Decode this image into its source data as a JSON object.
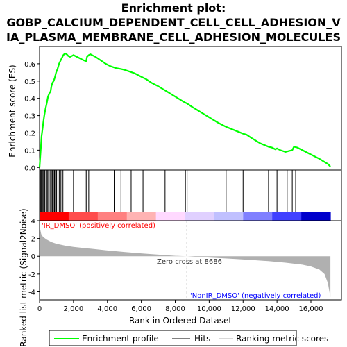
{
  "chart_data": {
    "type": "line",
    "title_lines": [
      "Enrichment plot:",
      "GOBP_CALCIUM_DEPENDENT_CELL_CELL_ADHESION_V",
      "IA_PLASMA_MEMBRANE_CELL_ADHESION_MOLECULES"
    ],
    "xlabel": "Rank in Ordered Dataset",
    "es_ylabel": "Enrichment score (ES)",
    "metric_ylabel": "Ranked list metric (Signal2Noise)",
    "xlim": [
      0,
      17800
    ],
    "x_ticks": [
      0,
      2000,
      4000,
      6000,
      8000,
      10000,
      12000,
      14000,
      16000
    ],
    "x_tick_labels": [
      "0",
      "2,000",
      "4,000",
      "6,000",
      "8,000",
      "10,000",
      "12,000",
      "14,000",
      "16,000"
    ],
    "es_ylim": [
      -0.015,
      0.7
    ],
    "es_ticks": [
      0.0,
      0.1,
      0.2,
      0.3,
      0.4,
      0.5,
      0.6
    ],
    "es_tick_labels": [
      "0.0",
      "0.1",
      "0.2",
      "0.3",
      "0.4",
      "0.5",
      "0.6"
    ],
    "metric_ylim": [
      -4.9,
      4.0
    ],
    "metric_ticks": [
      -4,
      -2,
      0,
      2,
      4
    ],
    "metric_tick_labels": [
      "-4",
      "-2",
      "0",
      "2",
      "4"
    ],
    "grid": false,
    "legend_position": "bottom",
    "series": [
      {
        "name": "Enrichment profile",
        "color": "#00ff00",
        "x": [
          0,
          40,
          80,
          120,
          170,
          220,
          280,
          350,
          420,
          500,
          580,
          650,
          700,
          760,
          830,
          900,
          980,
          1060,
          1150,
          1250,
          1300,
          1400,
          1500,
          1600,
          1700,
          1800,
          1900,
          2000,
          2200,
          2400,
          2600,
          2750,
          2800,
          2900,
          3000,
          3300,
          3600,
          3900,
          4200,
          4500,
          4800,
          5000,
          5300,
          5600,
          6000,
          6300,
          6600,
          7000,
          7500,
          8000,
          8500,
          8700,
          9000,
          9500,
          10000,
          10500,
          11000,
          11500,
          12000,
          12200,
          12500,
          13000,
          13500,
          13700,
          13900,
          14000,
          14200,
          14500,
          14700,
          14900,
          15000,
          15200,
          15500,
          16000,
          16500,
          17000,
          17150
        ],
        "y": [
          0.0,
          0.06,
          0.12,
          0.18,
          0.22,
          0.26,
          0.3,
          0.34,
          0.37,
          0.41,
          0.43,
          0.44,
          0.47,
          0.49,
          0.5,
          0.52,
          0.55,
          0.57,
          0.6,
          0.62,
          0.63,
          0.65,
          0.66,
          0.655,
          0.645,
          0.64,
          0.645,
          0.65,
          0.64,
          0.63,
          0.62,
          0.615,
          0.64,
          0.65,
          0.655,
          0.64,
          0.62,
          0.6,
          0.585,
          0.575,
          0.57,
          0.565,
          0.555,
          0.545,
          0.525,
          0.51,
          0.49,
          0.47,
          0.44,
          0.41,
          0.38,
          0.37,
          0.35,
          0.32,
          0.29,
          0.26,
          0.235,
          0.215,
          0.195,
          0.19,
          0.17,
          0.14,
          0.12,
          0.115,
          0.105,
          0.11,
          0.1,
          0.09,
          0.095,
          0.1,
          0.12,
          0.115,
          0.1,
          0.075,
          0.05,
          0.02,
          0.005
        ]
      }
    ],
    "hits": [
      30,
      70,
      110,
      160,
      210,
      260,
      310,
      380,
      440,
      490,
      550,
      620,
      700,
      760,
      820,
      880,
      940,
      1000,
      1080,
      1160,
      1260,
      1380,
      2000,
      2750,
      2800,
      2900,
      4400,
      4800,
      5400,
      6100,
      7400,
      8600,
      8700,
      11000,
      12000,
      13500,
      14000,
      14600,
      14900,
      15100
    ],
    "metric_profile": {
      "x": [
        0,
        100,
        200,
        400,
        700,
        1000,
        1500,
        2000,
        3000,
        4000,
        5000,
        6000,
        7000,
        8000,
        8686,
        9500,
        10500,
        11500,
        12500,
        13500,
        14500,
        15500,
        16000,
        16500,
        16800,
        17000,
        17150
      ],
      "y": [
        3.4,
        2.5,
        2.2,
        1.9,
        1.6,
        1.4,
        1.2,
        1.05,
        0.85,
        0.65,
        0.48,
        0.32,
        0.18,
        0.05,
        0.0,
        -0.1,
        -0.2,
        -0.3,
        -0.42,
        -0.55,
        -0.72,
        -0.95,
        -1.15,
        -1.5,
        -2.0,
        -3.0,
        -4.6
      ]
    },
    "positive_label": "'IR_DMSO' (positively correlated)",
    "negative_label": "'NonIR_DMSO' (negatively correlated)",
    "zero_cross_label": "Zero cross at 8686",
    "zero_cross": 8686,
    "legend_items": [
      "Enrichment profile",
      "Hits",
      "Ranking metric scores"
    ],
    "colors": {
      "enrichment": "#00ff00",
      "hits": "#000000",
      "metric_fill": "#b0b0b0",
      "positive_text": "#ff0000",
      "negative_text": "#0000ff",
      "gradient": [
        "#ff0000",
        "#ff4c4c",
        "#ff8080",
        "#ffb3b3",
        "#ffd9ff",
        "#e0d0ff",
        "#c0c0ff",
        "#8080ff",
        "#4040ff",
        "#0000cc"
      ]
    }
  }
}
